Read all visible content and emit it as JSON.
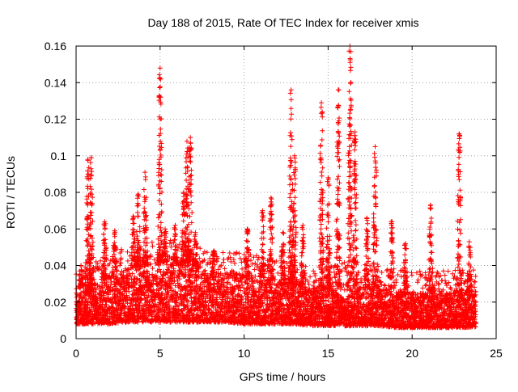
{
  "chart_data": {
    "type": "scatter",
    "title": "Day 188 of 2015, Rate Of TEC Index for receiver xmis",
    "xlabel": "GPS time / hours",
    "ylabel": "ROTI / TECUs",
    "xlim": [
      0,
      25
    ],
    "ylim": [
      0,
      0.16
    ],
    "x_ticks": [
      0,
      5,
      10,
      15,
      20,
      25
    ],
    "x_tick_labels": [
      "0",
      "5",
      "10",
      "15",
      "20",
      "25"
    ],
    "y_ticks": [
      0,
      0.02,
      0.04,
      0.06,
      0.08,
      0.1,
      0.12,
      0.14,
      0.16
    ],
    "y_tick_labels": [
      "0",
      "0.02",
      "0.04",
      "0.06",
      "0.08",
      "0.1",
      "0.12",
      "0.14",
      "0.16"
    ],
    "grid": true,
    "marker": "+",
    "series_color": "#ff0000",
    "x_data_range": [
      0,
      23.8
    ],
    "baseline_band": [
      {
        "x": 0,
        "low": 0.008,
        "high": 0.028
      },
      {
        "x": 1,
        "low": 0.008,
        "high": 0.03
      },
      {
        "x": 2,
        "low": 0.008,
        "high": 0.035
      },
      {
        "x": 3,
        "low": 0.009,
        "high": 0.038
      },
      {
        "x": 4,
        "low": 0.009,
        "high": 0.04
      },
      {
        "x": 5,
        "low": 0.009,
        "high": 0.042
      },
      {
        "x": 6,
        "low": 0.009,
        "high": 0.042
      },
      {
        "x": 7,
        "low": 0.009,
        "high": 0.04
      },
      {
        "x": 8,
        "low": 0.009,
        "high": 0.036
      },
      {
        "x": 9,
        "low": 0.009,
        "high": 0.036
      },
      {
        "x": 10,
        "low": 0.008,
        "high": 0.036
      },
      {
        "x": 11,
        "low": 0.008,
        "high": 0.034
      },
      {
        "x": 12,
        "low": 0.008,
        "high": 0.032
      },
      {
        "x": 13,
        "low": 0.008,
        "high": 0.03
      },
      {
        "x": 14,
        "low": 0.007,
        "high": 0.028
      },
      {
        "x": 15,
        "low": 0.007,
        "high": 0.028
      },
      {
        "x": 16,
        "low": 0.007,
        "high": 0.03
      },
      {
        "x": 17,
        "low": 0.007,
        "high": 0.03
      },
      {
        "x": 18,
        "low": 0.007,
        "high": 0.028
      },
      {
        "x": 19,
        "low": 0.006,
        "high": 0.026
      },
      {
        "x": 20,
        "low": 0.006,
        "high": 0.025
      },
      {
        "x": 21,
        "low": 0.006,
        "high": 0.025
      },
      {
        "x": 22,
        "low": 0.006,
        "high": 0.025
      },
      {
        "x": 23,
        "low": 0.006,
        "high": 0.026
      },
      {
        "x": 23.8,
        "low": 0.006,
        "high": 0.026
      }
    ],
    "spikes": [
      {
        "x": 0.3,
        "peak": 0.04
      },
      {
        "x": 0.7,
        "peak": 0.098
      },
      {
        "x": 0.9,
        "peak": 0.099
      },
      {
        "x": 1.7,
        "peak": 0.064
      },
      {
        "x": 2.3,
        "peak": 0.059
      },
      {
        "x": 3.4,
        "peak": 0.067
      },
      {
        "x": 3.7,
        "peak": 0.079
      },
      {
        "x": 4.1,
        "peak": 0.091
      },
      {
        "x": 5.0,
        "peak": 0.148
      },
      {
        "x": 5.3,
        "peak": 0.06
      },
      {
        "x": 5.9,
        "peak": 0.062
      },
      {
        "x": 6.4,
        "peak": 0.08
      },
      {
        "x": 6.6,
        "peak": 0.108
      },
      {
        "x": 6.8,
        "peak": 0.11
      },
      {
        "x": 7.1,
        "peak": 0.058
      },
      {
        "x": 8.2,
        "peak": 0.048
      },
      {
        "x": 10.2,
        "peak": 0.06
      },
      {
        "x": 11.1,
        "peak": 0.07
      },
      {
        "x": 11.6,
        "peak": 0.077
      },
      {
        "x": 12.3,
        "peak": 0.058
      },
      {
        "x": 12.8,
        "peak": 0.136
      },
      {
        "x": 13.0,
        "peak": 0.1
      },
      {
        "x": 13.5,
        "peak": 0.062
      },
      {
        "x": 14.6,
        "peak": 0.129
      },
      {
        "x": 15.0,
        "peak": 0.088
      },
      {
        "x": 15.6,
        "peak": 0.136
      },
      {
        "x": 16.3,
        "peak": 0.16
      },
      {
        "x": 16.6,
        "peak": 0.113
      },
      {
        "x": 17.3,
        "peak": 0.066
      },
      {
        "x": 17.8,
        "peak": 0.105
      },
      {
        "x": 18.8,
        "peak": 0.064
      },
      {
        "x": 19.6,
        "peak": 0.052
      },
      {
        "x": 21.1,
        "peak": 0.073
      },
      {
        "x": 22.8,
        "peak": 0.112
      },
      {
        "x": 23.4,
        "peak": 0.053
      }
    ]
  }
}
